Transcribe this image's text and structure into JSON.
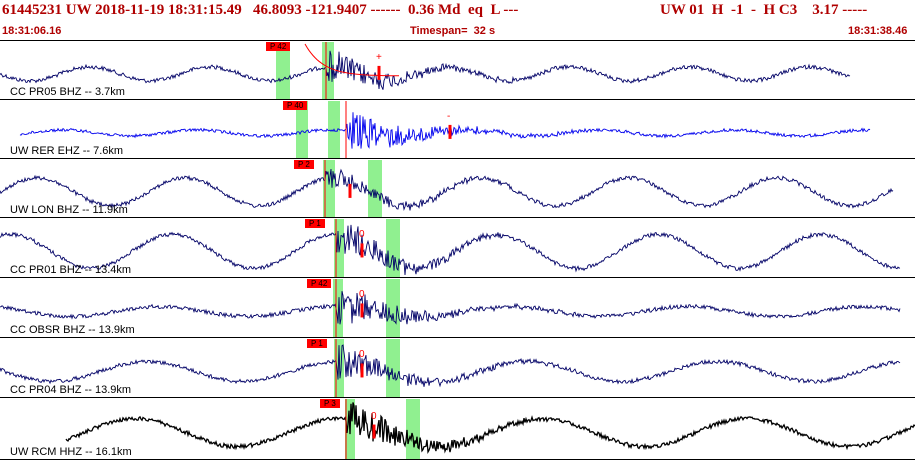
{
  "header": {
    "event_id": "61445231",
    "network": "UW",
    "origin_time": "2018-11-19 18:31:15.49",
    "latitude": "46.8093",
    "longitude": "-121.9407",
    "depth_dashes": "------",
    "magnitude": "0.36 Md",
    "event_type": "eq",
    "event_flag": "L ---",
    "right_text": "UW 01  H  -1  -  H C3    3.17 -----",
    "start_time": "18:31:06.16",
    "timespan": "Timespan=  32 s",
    "end_time": "18:31:38.46"
  },
  "colors": {
    "header_text": "#b00000",
    "pick_box": "#ff0000",
    "window_band": "#90f090",
    "trace_default": "#000066",
    "trace_selected": "#0000ee",
    "trace_hh": "#000000",
    "pick_marker": "#ff0000"
  },
  "panels": [
    {
      "station": "CC PR05 BHZ -- 3.7km",
      "pick_label": "P 42",
      "s_marker": "+",
      "trace_color": "#000066"
    },
    {
      "station": "UW RER EHZ -- 7.6km",
      "pick_label": "P 40",
      "s_marker": "-",
      "trace_color": "#0000ee"
    },
    {
      "station": "UW LON BHZ -- 11.9km",
      "pick_label": "P 2",
      "s_marker": "",
      "trace_color": "#000066"
    },
    {
      "station": "CC PR01 BHZ -- 13.4km",
      "pick_label": "P 1",
      "s_marker": "0",
      "trace_color": "#000066"
    },
    {
      "station": "CC OBSR BHZ -- 13.9km",
      "pick_label": "P 42",
      "s_marker": "0",
      "trace_color": "#000066"
    },
    {
      "station": "CC PR04 BHZ -- 13.9km",
      "pick_label": "P 1",
      "s_marker": "0",
      "trace_color": "#000066"
    },
    {
      "station": "UW RCM HHZ -- 16.1km",
      "pick_label": "P 3",
      "s_marker": "0",
      "trace_color": "#000000"
    }
  ]
}
